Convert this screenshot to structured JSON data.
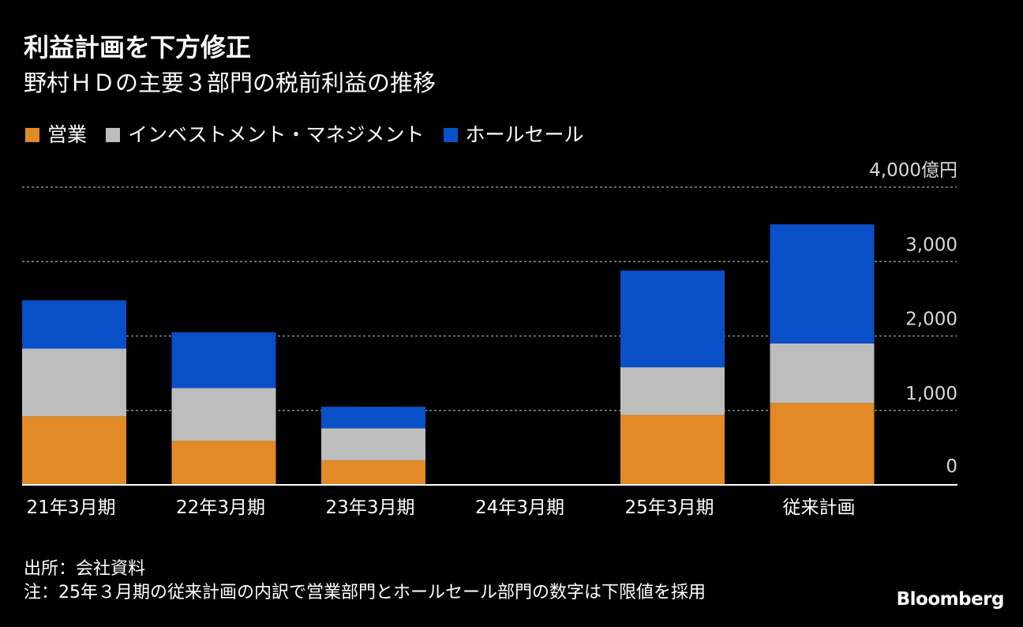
{
  "header": {
    "title": "利益計画を下方修正",
    "subtitle": "野村ＨＤの主要３部門の税前利益の推移"
  },
  "legend": [
    {
      "label": "営業",
      "color": "#E28A25"
    },
    {
      "label": "インベストメント・マネジメント",
      "color": "#BDBDBD"
    },
    {
      "label": "ホールセール",
      "color": "#0950C8"
    }
  ],
  "chart_data": {
    "type": "bar",
    "stacked": true,
    "categories": [
      "21年3月期",
      "22年3月期",
      "23年3月期",
      "24年3月期",
      "25年3月期",
      "従来計画"
    ],
    "series": [
      {
        "name": "営業",
        "color": "#E28A25",
        "values": [
          920,
          590,
          330,
          0,
          940,
          1100
        ]
      },
      {
        "name": "インベストメント・マネジメント",
        "color": "#BDBDBD",
        "values": [
          910,
          710,
          430,
          0,
          640,
          800
        ]
      },
      {
        "name": "ホールセール",
        "color": "#0950C8",
        "values": [
          650,
          750,
          290,
          0,
          1300,
          1600
        ]
      }
    ],
    "ylim": [
      0,
      4000
    ],
    "yticks": [
      {
        "value": 0,
        "label": "0"
      },
      {
        "value": 1000,
        "label": "1,000"
      },
      {
        "value": 2000,
        "label": "2,000"
      },
      {
        "value": 3000,
        "label": "3,000"
      },
      {
        "value": 4000,
        "label": "4,000億円"
      }
    ],
    "grid": true,
    "ylabel": "",
    "xlabel": ""
  },
  "footer": {
    "source": "出所：会社資料",
    "note": "注：25年３月期の従来計画の内訳で営業部門とホールセール部門の数字は下限値を採用",
    "logo": "Bloomberg"
  }
}
